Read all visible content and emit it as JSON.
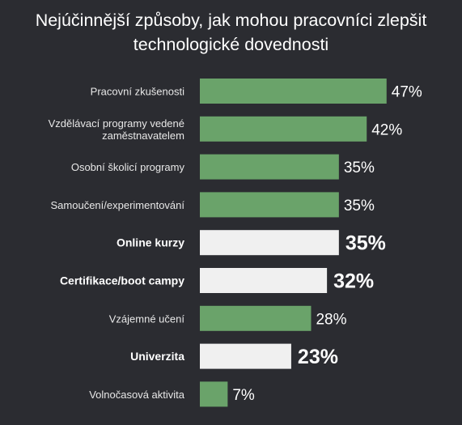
{
  "chart_data": {
    "type": "bar",
    "orientation": "horizontal",
    "title_line1": "Nejúčinnější způsoby, jak mohou pracovníci zlepšit",
    "title_line2": "technologické dovednosti",
    "categories": [
      [
        "Pracovní zkušenosti"
      ],
      [
        "Vzdělávací programy vedené",
        "zaměstnavatelem"
      ],
      [
        "Osobní školicí programy"
      ],
      [
        "Samoučení/experimentování"
      ],
      [
        "Online kurzy"
      ],
      [
        "Certifikace/boot campy"
      ],
      [
        "Vzájemné učení"
      ],
      [
        "Univerzita"
      ],
      [
        "Volnočasová aktivita"
      ]
    ],
    "values": [
      47,
      42,
      35,
      35,
      35,
      32,
      28,
      23,
      7
    ],
    "value_labels": [
      "47%",
      "42%",
      "35%",
      "35%",
      "35%",
      "32%",
      "28%",
      "23%",
      "7%"
    ],
    "highlighted": [
      false,
      false,
      false,
      false,
      true,
      true,
      false,
      true,
      false
    ],
    "colors": {
      "bar": "#6aa36a",
      "highlight_bar": "#f0f0f0",
      "background": "#2b2c31",
      "text": "#ffffff"
    },
    "grid": false,
    "legend": "none"
  }
}
